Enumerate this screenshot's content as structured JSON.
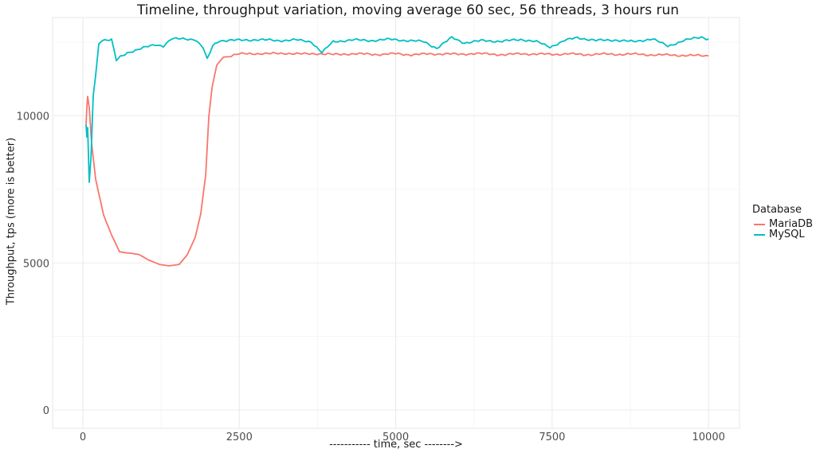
{
  "chart_data": {
    "type": "line",
    "title": "Timeline, throughput variation, moving average 60 sec, 56 threads, 3 hours run",
    "xlabel": "----------- time, sec -------->",
    "ylabel": "Throughput, tps (more is better)",
    "xlim": [
      -500,
      10500
    ],
    "ylim": [
      -300,
      13400
    ],
    "x_ticks": [
      0,
      2500,
      5000,
      7500,
      10000
    ],
    "x_tick_labels": [
      "0",
      "2500",
      "5000",
      "7500",
      "10000"
    ],
    "y_ticks": [
      0,
      5000,
      10000
    ],
    "y_tick_labels": [
      "0",
      "5000",
      "10000"
    ],
    "grid": true,
    "minor_x_grid": [
      1250,
      3750,
      6250,
      8750
    ],
    "minor_y_grid": [
      2500,
      7500,
      12500
    ],
    "legend": {
      "title": "Database",
      "position": "right",
      "entries": [
        "MariaDB",
        "MySQL"
      ]
    },
    "series": [
      {
        "name": "MariaDB",
        "color": "#F8766D",
        "x": [
          51,
          64,
          76,
          102,
          140,
          204,
          331,
          459,
          586,
          700,
          777,
          904,
          1050,
          1223,
          1376,
          1541,
          1669,
          1796,
          1885,
          1962,
          2013,
          2064,
          2140,
          2242,
          2497,
          2750,
          3000,
          3250,
          3500,
          3750,
          4000,
          4250,
          4500,
          4750,
          5000,
          5250,
          5500,
          5750,
          6000,
          6250,
          6500,
          6750,
          7000,
          7250,
          7500,
          7750,
          8000,
          8250,
          8500,
          8750,
          9000,
          9250,
          9500,
          9750,
          10000
        ],
        "y": [
          9690,
          10300,
          10660,
          10280,
          9060,
          7850,
          6630,
          5950,
          5380,
          5340,
          5330,
          5280,
          5100,
          4950,
          4900,
          4950,
          5280,
          5870,
          6680,
          7980,
          9990,
          10960,
          11720,
          11990,
          12100,
          12120,
          12110,
          12130,
          12100,
          12120,
          12080,
          12110,
          12100,
          12090,
          12110,
          12080,
          12100,
          12110,
          12090,
          12120,
          12100,
          12080,
          12110,
          12100,
          12090,
          12110,
          12080,
          12100,
          12090,
          12100,
          12080,
          12070,
          12060,
          12050,
          12040
        ]
      },
      {
        "name": "MySQL",
        "color": "#00BFC4",
        "x": [
          51,
          64,
          76,
          102,
          130,
          166,
          204,
          255,
          306,
          459,
          535,
          600,
          713,
          968,
          1159,
          1287,
          1414,
          1600,
          1796,
          1924,
          1987,
          2076,
          2178,
          2500,
          2800,
          3100,
          3400,
          3650,
          3822,
          4000,
          4300,
          4600,
          4900,
          5200,
          5450,
          5656,
          5898,
          6100,
          6400,
          6700,
          7000,
          7250,
          7465,
          7700,
          7900,
          8200,
          8500,
          8800,
          9100,
          9350,
          9600,
          9885,
          10000
        ],
        "y": [
          9690,
          9280,
          9600,
          7740,
          8600,
          10690,
          11370,
          12450,
          12580,
          12580,
          11880,
          12000,
          12150,
          12310,
          12420,
          12380,
          12610,
          12620,
          12600,
          12300,
          11910,
          12380,
          12560,
          12570,
          12590,
          12560,
          12580,
          12520,
          12150,
          12520,
          12580,
          12560,
          12600,
          12560,
          12520,
          12300,
          12660,
          12480,
          12560,
          12530,
          12600,
          12520,
          12340,
          12560,
          12660,
          12560,
          12580,
          12520,
          12620,
          12370,
          12560,
          12680,
          12610
        ]
      }
    ]
  }
}
